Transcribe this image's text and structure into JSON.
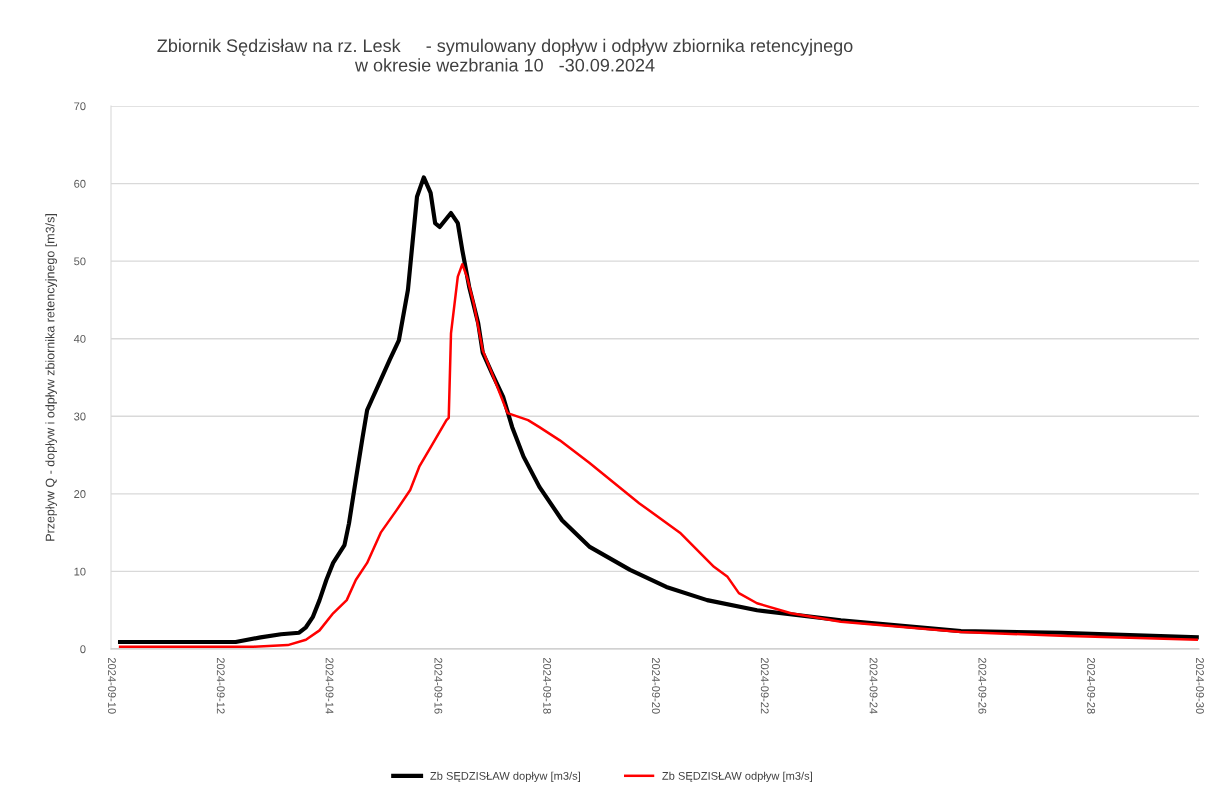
{
  "chart_data": {
    "type": "line",
    "title": "Zbiornik Sędzisław na rz. Lesk     - symulowany dopływ i odpływ zbiornika retencyjnego\nw okresie wezbrania 10   -30.09.2024",
    "ylabel": "Przepływ Q - dopływ i odpływ zbiornika retencyjnego [m3/s]",
    "xlim": [
      "2024-09-10",
      "2024-09-30"
    ],
    "xticks": [
      "2024-09-10",
      "2024-09-12",
      "2024-09-14",
      "2024-09-16",
      "2024-09-18",
      "2024-09-20",
      "2024-09-22",
      "2024-09-24",
      "2024-09-26",
      "2024-09-28",
      "2024-09-30"
    ],
    "ylim": [
      0,
      70
    ],
    "yticks": [
      0,
      10,
      20,
      30,
      40,
      50,
      60,
      70
    ],
    "grid": "y",
    "legend": "bottom",
    "marker": "none",
    "line_style": "solid",
    "series": [
      {
        "name": "Zb SĘDZISŁAW dopływ [m3/s]",
        "color": "#000000",
        "x": [
          "2024-09-10T04:00",
          "2024-09-12T07:00",
          "2024-09-12T18:00",
          "2024-09-13T03:00",
          "2024-09-13T11:00",
          "2024-09-13T14:00",
          "2024-09-13T17:00",
          "2024-09-13T20:00",
          "2024-09-13T23:00",
          "2024-09-14T02:00",
          "2024-09-14T07:00",
          "2024-09-14T09:00",
          "2024-09-14T12:00",
          "2024-09-14T15:00",
          "2024-09-14T17:00",
          "2024-09-14T19:00",
          "2024-09-14T23:00",
          "2024-09-15T03:00",
          "2024-09-15T07:00",
          "2024-09-15T11:00",
          "2024-09-15T13:00",
          "2024-09-15T15:00",
          "2024-09-15T18:00",
          "2024-09-15T21:00",
          "2024-09-15T23:00",
          "2024-09-16T01:00",
          "2024-09-16T06:00",
          "2024-09-16T09:00",
          "2024-09-16T11:00",
          "2024-09-16T14:00",
          "2024-09-16T18:00",
          "2024-09-16T20:00",
          "2024-09-17T00:00",
          "2024-09-17T05:00",
          "2024-09-17T09:00",
          "2024-09-17T14:00",
          "2024-09-17T21:00",
          "2024-09-18T07:00",
          "2024-09-18T19:00",
          "2024-09-19T13:00",
          "2024-09-20T05:00",
          "2024-09-20T23:00",
          "2024-09-21T21:00",
          "2024-09-23T10:00",
          "2024-09-25T15:00",
          "2024-09-27T11:00",
          "2024-09-29T23:00"
        ],
        "values": [
          0.9,
          0.9,
          1.5,
          1.9,
          2.1,
          2.8,
          4.1,
          6.3,
          8.9,
          11.1,
          13.4,
          16.2,
          21.8,
          27.3,
          30.8,
          32.1,
          34.7,
          37.3,
          39.8,
          46.3,
          52.3,
          58.3,
          60.8,
          58.8,
          54.9,
          54.4,
          56.2,
          54.9,
          51.4,
          46.7,
          42.0,
          38.2,
          35.6,
          32.5,
          28.6,
          24.8,
          20.9,
          16.6,
          13.2,
          10.2,
          8.0,
          6.3,
          5.0,
          3.7,
          2.3,
          2.1,
          1.5
        ]
      },
      {
        "name": "Zb SĘDZISŁAW odpływ [m3/s]",
        "color": "#ff0000",
        "x": [
          "2024-09-10T04:00",
          "2024-09-12T15:00",
          "2024-09-13T06:00",
          "2024-09-13T14:00",
          "2024-09-13T20:00",
          "2024-09-14T02:00",
          "2024-09-14T08:00",
          "2024-09-14T12:00",
          "2024-09-14T17:00",
          "2024-09-14T23:00",
          "2024-09-15T06:00",
          "2024-09-15T12:00",
          "2024-09-15T16:00",
          "2024-09-15T21:00",
          "2024-09-16T04:00",
          "2024-09-16T05:00",
          "2024-09-16T06:00",
          "2024-09-16T09:00",
          "2024-09-16T11:00",
          "2024-09-16T13:00",
          "2024-09-16T16:00",
          "2024-09-16T20:00",
          "2024-09-17T00:00",
          "2024-09-17T07:00",
          "2024-09-17T16:00",
          "2024-09-17T21:00",
          "2024-09-18T06:00",
          "2024-09-18T19:00",
          "2024-09-19T17:00",
          "2024-09-20T11:00",
          "2024-09-21T02:00",
          "2024-09-21T08:00",
          "2024-09-21T13:00",
          "2024-09-21T21:00",
          "2024-09-22T12:00",
          "2024-09-23T10:00",
          "2024-09-25T15:00",
          "2024-09-27T11:00",
          "2024-09-29T23:00"
        ],
        "values": [
          0.3,
          0.3,
          0.5,
          1.2,
          2.4,
          4.6,
          6.3,
          8.9,
          11.1,
          15.0,
          17.9,
          20.5,
          23.5,
          26.0,
          29.5,
          29.8,
          40.7,
          48.0,
          49.6,
          48.0,
          44.6,
          38.5,
          35.6,
          30.4,
          29.5,
          28.6,
          26.9,
          24.0,
          18.8,
          15.0,
          10.6,
          9.3,
          7.2,
          5.9,
          4.6,
          3.5,
          2.2,
          1.7,
          1.2
        ]
      }
    ]
  }
}
